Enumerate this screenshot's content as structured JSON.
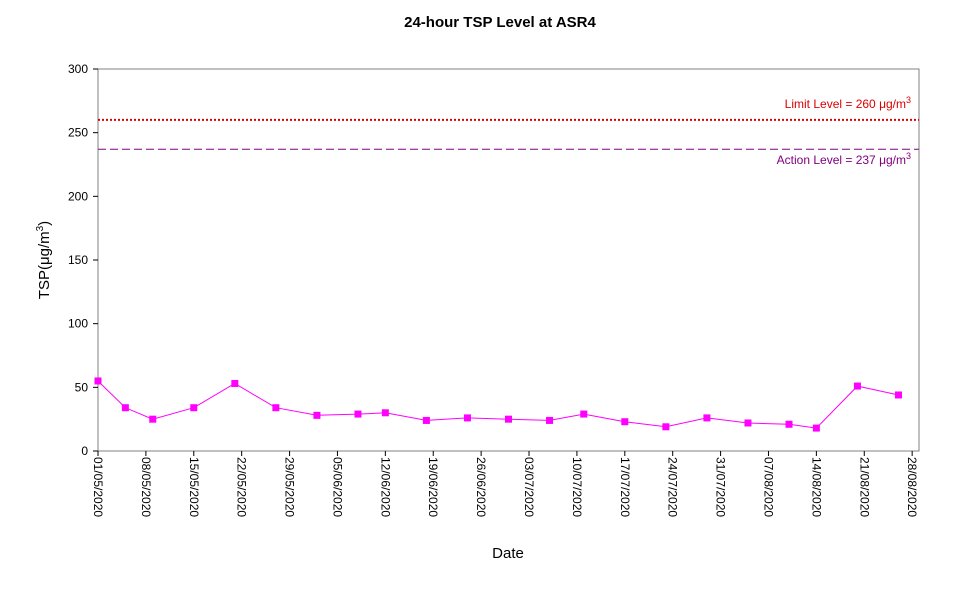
{
  "chart_data": {
    "type": "line",
    "title": "24-hour TSP Level at ASR4",
    "xlabel": "Date",
    "ylabel": "TSP(μg/m³)",
    "ylabel_parts": {
      "base": "TSP(",
      "unit": "μg/m",
      "sup": "3",
      "close": ")"
    },
    "ylim": [
      0,
      300
    ],
    "yticks": [
      0,
      50,
      100,
      150,
      200,
      250,
      300
    ],
    "xlim": [
      "2020-05-01",
      "2020-08-29"
    ],
    "xtick_labels": [
      "01/05/2020",
      "08/05/2020",
      "15/05/2020",
      "22/05/2020",
      "29/05/2020",
      "05/06/2020",
      "12/06/2020",
      "19/06/2020",
      "26/06/2020",
      "03/07/2020",
      "10/07/2020",
      "17/07/2020",
      "24/07/2020",
      "31/07/2020",
      "07/08/2020",
      "14/08/2020",
      "21/08/2020",
      "28/08/2020"
    ],
    "xtick_dates": [
      "2020-05-01",
      "2020-05-08",
      "2020-05-15",
      "2020-05-22",
      "2020-05-29",
      "2020-06-05",
      "2020-06-12",
      "2020-06-19",
      "2020-06-26",
      "2020-07-03",
      "2020-07-10",
      "2020-07-17",
      "2020-07-24",
      "2020-07-31",
      "2020-08-07",
      "2020-08-14",
      "2020-08-21",
      "2020-08-28"
    ],
    "grid": false,
    "legend": "none",
    "series": [
      {
        "color": "#ff00ff",
        "marker": "square",
        "x": [
          "2020-05-01",
          "2020-05-05",
          "2020-05-09",
          "2020-05-15",
          "2020-05-21",
          "2020-05-27",
          "2020-06-02",
          "2020-06-08",
          "2020-06-12",
          "2020-06-18",
          "2020-06-24",
          "2020-06-30",
          "2020-07-06",
          "2020-07-11",
          "2020-07-17",
          "2020-07-23",
          "2020-07-29",
          "2020-08-04",
          "2020-08-10",
          "2020-08-14",
          "2020-08-20",
          "2020-08-26"
        ],
        "y": [
          55,
          34,
          25,
          34,
          53,
          34,
          28,
          29,
          30,
          24,
          26,
          25,
          24,
          29,
          23,
          19,
          26,
          22,
          21,
          18,
          51,
          44
        ]
      }
    ],
    "reference_lines": [
      {
        "label": "Limit Level  = 260 μg/m³",
        "text": "Limit Level  = 260 ",
        "unit": "μg/m",
        "sup": "3",
        "y": 260,
        "color": "#dd0000",
        "style": "dotted"
      },
      {
        "label": "Action Level  = 237 μg/m³",
        "text": "Action Level  = 237 ",
        "unit": "μg/m",
        "sup": "3",
        "y": 237,
        "color": "#800080",
        "style": "dashed"
      }
    ]
  }
}
